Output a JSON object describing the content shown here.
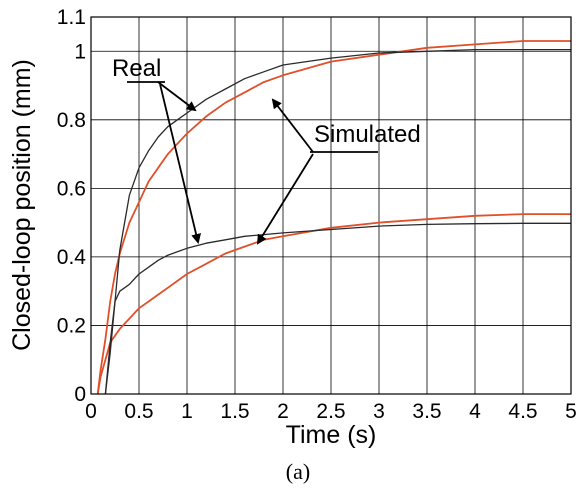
{
  "chart_data": {
    "type": "line",
    "title": "",
    "caption": "(a)",
    "xlabel": "Time (s)",
    "ylabel": "Closed-loop position (mm)",
    "xlim": [
      0,
      5
    ],
    "ylim": [
      0,
      1.1
    ],
    "grid": true,
    "x_ticks": [
      "0",
      "0.5",
      "1",
      "1.5",
      "2",
      "2.5",
      "3",
      "3.5",
      "4",
      "4.5",
      "5"
    ],
    "y_ticks": [
      "0",
      "0.2",
      "0.4",
      "0.6",
      "0.8",
      "1",
      "1.1"
    ],
    "annotations": [
      "Real",
      "Simulated"
    ],
    "colors": {
      "real": "#2a2a2a",
      "simulated": "#e0502a"
    },
    "series": [
      {
        "group": "real",
        "step": 1.0,
        "x": [
          0.15,
          0.2,
          0.25,
          0.3,
          0.4,
          0.5,
          0.6,
          0.7,
          0.8,
          0.9,
          1.0,
          1.2,
          1.4,
          1.6,
          1.8,
          2.0,
          2.5,
          3.0,
          3.5,
          4.0,
          4.5,
          5.0
        ],
        "y": [
          0.0,
          0.12,
          0.27,
          0.42,
          0.58,
          0.66,
          0.71,
          0.75,
          0.78,
          0.8,
          0.82,
          0.86,
          0.89,
          0.92,
          0.94,
          0.96,
          0.98,
          0.995,
          1.0,
          1.005,
          1.005,
          1.005
        ]
      },
      {
        "group": "simulated",
        "step": 1.0,
        "x": [
          0.07,
          0.1,
          0.15,
          0.2,
          0.25,
          0.3,
          0.4,
          0.5,
          0.6,
          0.7,
          0.8,
          0.9,
          1.0,
          1.2,
          1.4,
          1.6,
          1.8,
          2.0,
          2.5,
          3.0,
          3.5,
          4.0,
          4.5,
          5.0
        ],
        "y": [
          0.0,
          0.07,
          0.16,
          0.27,
          0.35,
          0.41,
          0.5,
          0.56,
          0.62,
          0.66,
          0.7,
          0.73,
          0.76,
          0.81,
          0.85,
          0.88,
          0.91,
          0.93,
          0.97,
          0.99,
          1.01,
          1.02,
          1.03,
          1.03
        ]
      },
      {
        "group": "real",
        "step": 0.5,
        "x": [
          0.15,
          0.2,
          0.25,
          0.3,
          0.35,
          0.4,
          0.5,
          0.6,
          0.7,
          0.8,
          0.9,
          1.0,
          1.2,
          1.4,
          1.6,
          1.8,
          2.0,
          2.5,
          3.0,
          3.5,
          4.0,
          4.5,
          5.0
        ],
        "y": [
          0.0,
          0.15,
          0.27,
          0.3,
          0.31,
          0.32,
          0.35,
          0.37,
          0.39,
          0.405,
          0.415,
          0.425,
          0.44,
          0.45,
          0.46,
          0.465,
          0.47,
          0.48,
          0.49,
          0.495,
          0.497,
          0.498,
          0.498
        ]
      },
      {
        "group": "simulated",
        "step": 0.5,
        "x": [
          0.07,
          0.1,
          0.15,
          0.2,
          0.3,
          0.4,
          0.5,
          0.6,
          0.7,
          0.8,
          0.9,
          1.0,
          1.2,
          1.4,
          1.6,
          1.8,
          2.0,
          2.5,
          3.0,
          3.5,
          4.0,
          4.5,
          5.0
        ],
        "y": [
          0.0,
          0.05,
          0.1,
          0.15,
          0.19,
          0.22,
          0.25,
          0.27,
          0.29,
          0.31,
          0.33,
          0.35,
          0.38,
          0.41,
          0.43,
          0.45,
          0.46,
          0.485,
          0.5,
          0.51,
          0.52,
          0.525,
          0.525
        ]
      }
    ]
  }
}
